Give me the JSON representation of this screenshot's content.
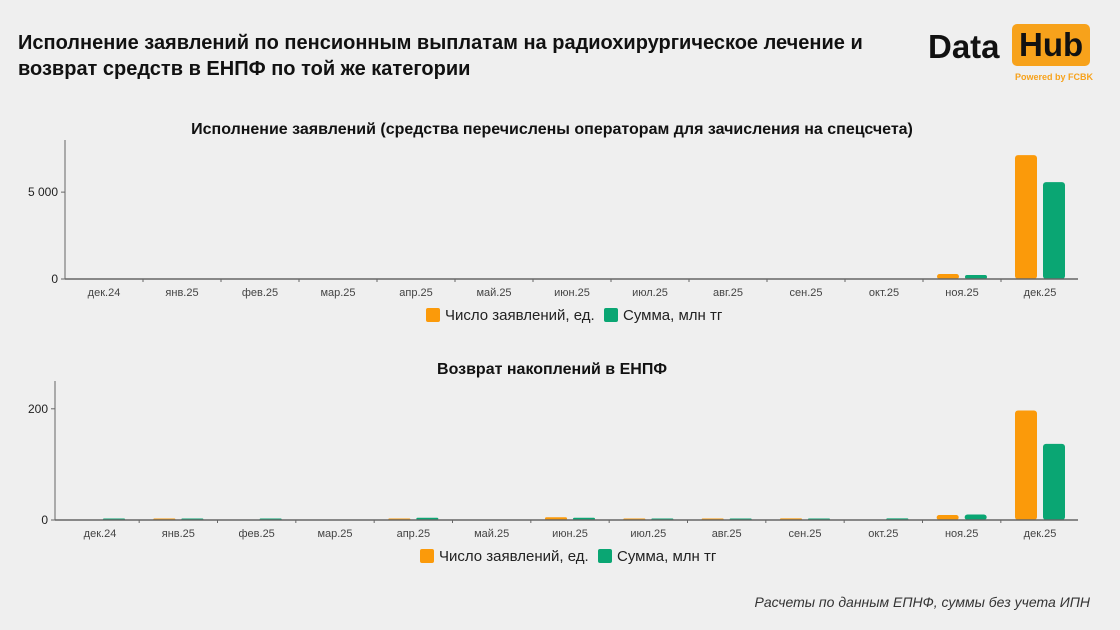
{
  "title": "Исполнение заявлений по пенсионным выплатам на радиохирургическое лечение и возврат средств в ЕНПФ по той же категории",
  "logo": {
    "text_1": "Data",
    "text_2": "Hub",
    "tagline": "Powered by FCBK"
  },
  "footnote": "Расчеты по данным ЕПНФ, суммы без учета ИПН",
  "colors": {
    "orange": "#fb9a0a",
    "green": "#0aa673"
  },
  "chart_data": [
    {
      "type": "bar",
      "title": "Исполнение заявлений (средства перечислены операторам для зачисления на спецсчета)",
      "categories": [
        "дек.24",
        "янв.25",
        "фев.25",
        "мар.25",
        "апр.25",
        "май.25",
        "июн.25",
        "июл.25",
        "авг.25",
        "сен.25",
        "окт.25",
        "ноя.25",
        "дек.25"
      ],
      "series": [
        {
          "name": "Число заявлений, ед.",
          "values": [
            0,
            0,
            0,
            0,
            0,
            0,
            0,
            0,
            0,
            0,
            0,
            290,
            7130
          ]
        },
        {
          "name": "Сумма, млн тг",
          "values": [
            0,
            0,
            0,
            0,
            0,
            0,
            0,
            0,
            0,
            0,
            0,
            230,
            5575
          ]
        }
      ],
      "yticks": [
        0,
        5000
      ],
      "ytick_labels": [
        "0",
        "5 000"
      ],
      "ylim": [
        0,
        8000
      ],
      "legend": "bottom",
      "grid": false
    },
    {
      "type": "bar",
      "title": "Возврат накоплений в ЕНПФ",
      "categories": [
        "дек.24",
        "янв.25",
        "фев.25",
        "мар.25",
        "апр.25",
        "май.25",
        "июн.25",
        "июл.25",
        "авг.25",
        "сен.25",
        "окт.25",
        "ноя.25",
        "дек.25"
      ],
      "series": [
        {
          "name": "Число заявлений, ед.",
          "values": [
            0,
            1,
            0,
            0,
            2,
            0,
            5,
            1,
            1,
            3,
            0,
            9,
            197
          ]
        },
        {
          "name": "Сумма, млн тг",
          "values": [
            2,
            2,
            1,
            0,
            4,
            0,
            4,
            1,
            1,
            1,
            3,
            10,
            137
          ]
        }
      ],
      "yticks": [
        0,
        200
      ],
      "ytick_labels": [
        "0",
        "200"
      ],
      "ylim": [
        0,
        250
      ],
      "legend": "bottom",
      "grid": false
    }
  ]
}
